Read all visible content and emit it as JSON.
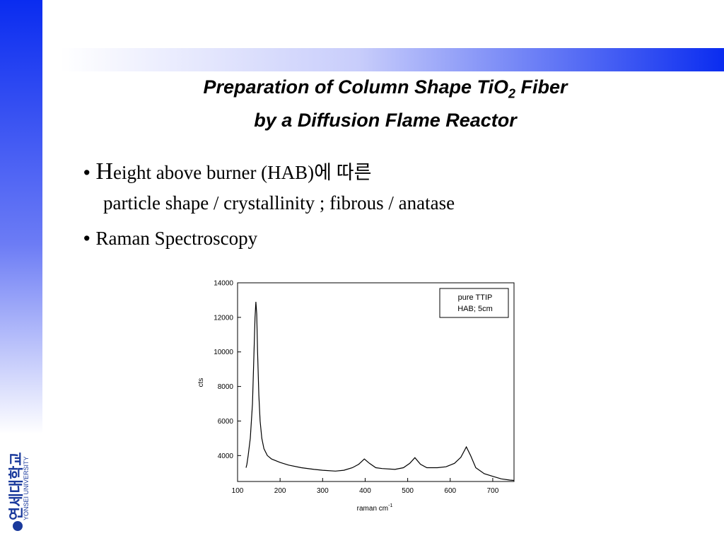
{
  "title": {
    "line1": "Preparation of Column Shape TiO",
    "line1_sub": "2",
    "line1_end": " Fiber",
    "line2": "by a Diffusion Flame Reactor"
  },
  "bullets": [
    {
      "initial": "H",
      "text": "eight above burner (HAB)에 따른",
      "subtext": "particle shape / crystallinity ; fibrous / anatase"
    },
    {
      "text": "Raman  Spectroscopy"
    }
  ],
  "logo": {
    "korean": "연세대학교",
    "english": "YONSEI UNIVERSITY"
  },
  "chart_data": {
    "type": "line",
    "x_label": "raman cm",
    "x_label_sup": "-1",
    "y_label": "cts",
    "annotation": "HAB; 5cm",
    "x": [
      120,
      122,
      125,
      130,
      135,
      138,
      141,
      143,
      145,
      147,
      150,
      153,
      157,
      162,
      170,
      180,
      200,
      220,
      250,
      280,
      300,
      330,
      350,
      370,
      385,
      398,
      410,
      425,
      440,
      470,
      490,
      505,
      517,
      530,
      545,
      570,
      590,
      610,
      625,
      638,
      648,
      660,
      680,
      700,
      720,
      740,
      750
    ],
    "series": [
      {
        "name": "pure TTIP",
        "color": "#000000",
        "values": [
          3300,
          3500,
          4000,
          5000,
          7000,
          9500,
          12000,
          12900,
          12200,
          10000,
          7500,
          6000,
          5000,
          4400,
          4000,
          3800,
          3600,
          3450,
          3300,
          3200,
          3150,
          3100,
          3150,
          3300,
          3500,
          3800,
          3550,
          3300,
          3250,
          3200,
          3300,
          3550,
          3880,
          3500,
          3300,
          3300,
          3350,
          3550,
          3900,
          4500,
          4000,
          3300,
          2950,
          2800,
          2650,
          2580,
          2560
        ]
      }
    ],
    "xlim": [
      100,
      750
    ],
    "ylim": [
      2500,
      14000
    ],
    "xticks": [
      100,
      200,
      300,
      400,
      500,
      600,
      700
    ],
    "yticks": [
      4000,
      6000,
      8000,
      10000,
      12000,
      14000
    ]
  }
}
